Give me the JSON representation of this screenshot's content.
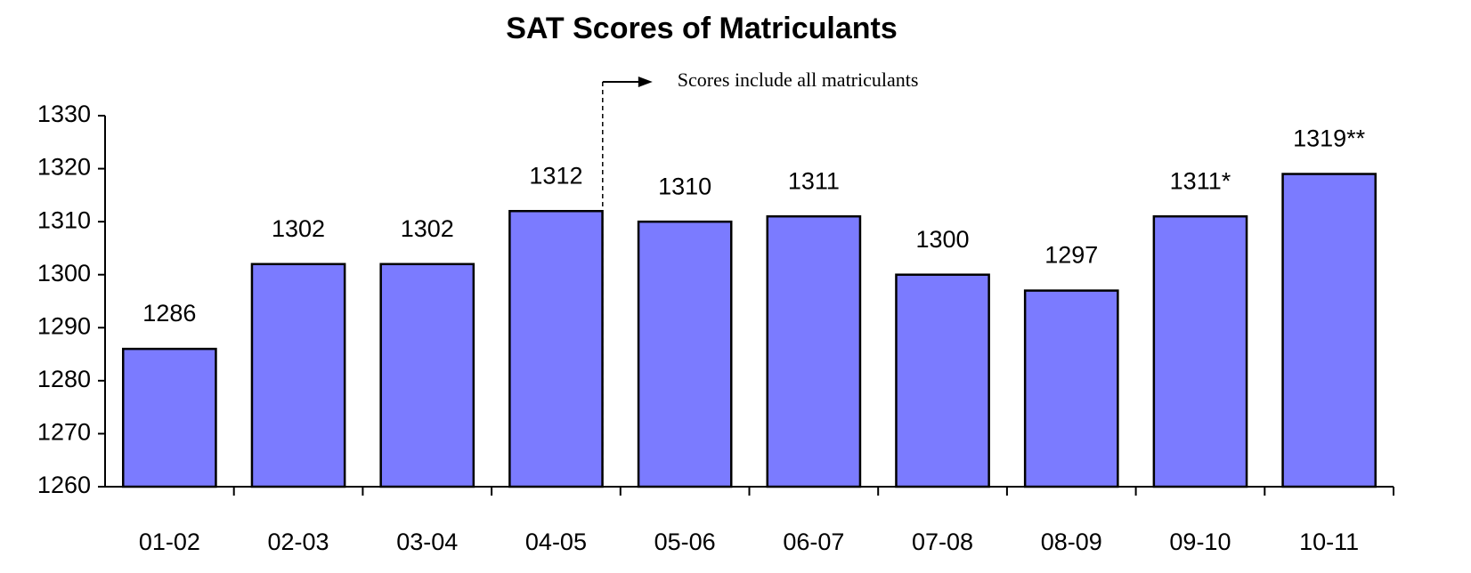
{
  "chart_data": {
    "type": "bar",
    "title": "SAT Scores of Matriculants",
    "annotation": "Scores include all matriculants",
    "categories": [
      "01-02",
      "02-03",
      "03-04",
      "04-05",
      "05-06",
      "06-07",
      "07-08",
      "08-09",
      "09-10",
      "10-11"
    ],
    "values": [
      1286,
      1302,
      1302,
      1312,
      1310,
      1311,
      1300,
      1297,
      1311,
      1319
    ],
    "value_labels": [
      "1286",
      "1302",
      "1302",
      "1312",
      "1310",
      "1311",
      "1300",
      "1297",
      "1311*",
      "1319**"
    ],
    "color": "#7b7bff",
    "ylim": [
      1260,
      1330
    ],
    "yticks": [
      1260,
      1270,
      1280,
      1290,
      1300,
      1310,
      1320,
      1330
    ],
    "grid": false
  }
}
